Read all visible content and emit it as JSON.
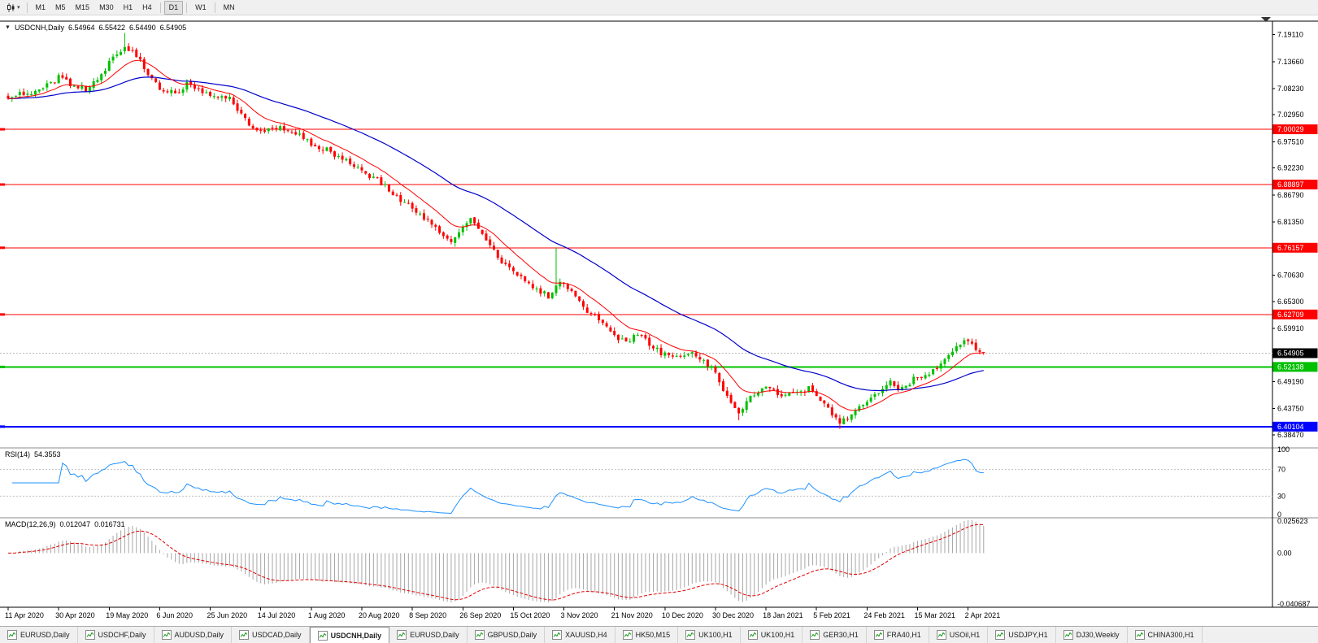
{
  "toolbar": {
    "chart_type_button": {
      "icon": "candlestick-chart-icon",
      "caret": "▾"
    },
    "timeframes": [
      {
        "label": "M1",
        "active": false
      },
      {
        "label": "M5",
        "active": false
      },
      {
        "label": "M15",
        "active": false
      },
      {
        "label": "M30",
        "active": false
      },
      {
        "label": "H1",
        "active": false
      },
      {
        "label": "H4",
        "active": false
      },
      {
        "label": "D1",
        "active": true
      },
      {
        "label": "W1",
        "active": false
      },
      {
        "label": "MN",
        "active": false
      }
    ]
  },
  "chart": {
    "window_icon": "▼",
    "symbol_title": "USDCNH,Daily",
    "ohlc": {
      "open": "6.54964",
      "high": "6.55422",
      "low": "6.54490",
      "close": "6.54905"
    }
  },
  "indicators": {
    "rsi": {
      "name": "RSI(14)",
      "value": "54.3553",
      "axis_labels": [
        "100",
        "70",
        "30",
        "0"
      ],
      "levels": [
        70,
        30
      ],
      "line_color": "#1E90FF"
    },
    "macd": {
      "name": "MACD(12,26,9)",
      "values": [
        "0.012047",
        "0.016731"
      ],
      "axis_labels": [
        "0.025623",
        "0.00",
        "-0.040687"
      ],
      "histogram_color": "#a6a6a6",
      "signal_color": "#e00000"
    }
  },
  "price_axis": {
    "labels": [
      "7.19110",
      "7.13660",
      "7.08230",
      "7.02950",
      "6.97510",
      "6.92230",
      "6.86790",
      "6.81350",
      "6.70630",
      "6.65300",
      "6.59910",
      "6.49190",
      "6.43750",
      "6.38470"
    ],
    "current_price": {
      "value": "6.54905",
      "bg": "#000000",
      "fg": "#ffffff"
    }
  },
  "hlines": [
    {
      "price": 7.00029,
      "label": "7.00029",
      "color": "#ff0000",
      "width": 1
    },
    {
      "price": 6.88897,
      "label": "6.88897",
      "color": "#ff0000",
      "width": 1
    },
    {
      "price": 6.76157,
      "label": "6.76157",
      "color": "#ff0000",
      "width": 1
    },
    {
      "price": 6.62709,
      "label": "6.62709",
      "color": "#ff0000",
      "width": 1
    },
    {
      "price": 6.52138,
      "label": "6.52138",
      "color": "#00c000",
      "width": 2
    },
    {
      "price": 6.40104,
      "label": "6.40104",
      "color": "#0000ff",
      "width": 2
    }
  ],
  "time_axis": {
    "labels": [
      "11 Apr 2020",
      "30 Apr 2020",
      "19 May 2020",
      "6 Jun 2020",
      "25 Jun 2020",
      "14 Jul 2020",
      "1 Aug 2020",
      "20 Aug 2020",
      "8 Sep 2020",
      "26 Sep 2020",
      "15 Oct 2020",
      "3 Nov 2020",
      "21 Nov 2020",
      "10 Dec 2020",
      "30 Dec 2020",
      "18 Jan 2021",
      "5 Feb 2021",
      "24 Feb 2021",
      "15 Mar 2021",
      "2 Apr 2021"
    ]
  },
  "tabs": [
    {
      "label": "EURUSD,Daily",
      "active": false
    },
    {
      "label": "USDCHF,Daily",
      "active": false
    },
    {
      "label": "AUDUSD,Daily",
      "active": false
    },
    {
      "label": "USDCAD,Daily",
      "active": false
    },
    {
      "label": "USDCNH,Daily",
      "active": true
    },
    {
      "label": "EURUSD,Daily",
      "active": false
    },
    {
      "label": "GBPUSD,Daily",
      "active": false
    },
    {
      "label": "XAUUSD,H4",
      "active": false
    },
    {
      "label": "HK50,M15",
      "active": false
    },
    {
      "label": "UK100,H1",
      "active": false
    },
    {
      "label": "UK100,H1",
      "active": false
    },
    {
      "label": "GER30,H1",
      "active": false
    },
    {
      "label": "FRA40,H1",
      "active": false
    },
    {
      "label": "USOil,H1",
      "active": false
    },
    {
      "label": "USDJPY,H1",
      "active": false
    },
    {
      "label": "DJ30,Weekly",
      "active": false
    },
    {
      "label": "CHINA300,H1",
      "active": false
    }
  ],
  "chart_data": {
    "type": "candlestick",
    "symbol": "USDCNH",
    "timeframe": "Daily",
    "bars": 252,
    "y_axis": {
      "min": 6.368,
      "max": 7.215
    },
    "date_label_bar_step": 13,
    "price_path_anchors": [
      [
        0,
        7.065
      ],
      [
        6,
        7.075
      ],
      [
        10,
        7.09
      ],
      [
        13,
        7.105
      ],
      [
        16,
        7.09
      ],
      [
        20,
        7.08
      ],
      [
        23,
        7.1
      ],
      [
        26,
        7.135
      ],
      [
        30,
        7.168
      ],
      [
        33,
        7.15
      ],
      [
        36,
        7.11
      ],
      [
        39,
        7.085
      ],
      [
        43,
        7.072
      ],
      [
        46,
        7.09
      ],
      [
        52,
        7.072
      ],
      [
        57,
        7.06
      ],
      [
        60,
        7.028
      ],
      [
        63,
        7.005
      ],
      [
        67,
        6.997
      ],
      [
        71,
        7.003
      ],
      [
        75,
        6.988
      ],
      [
        78,
        6.972
      ],
      [
        82,
        6.958
      ],
      [
        86,
        6.94
      ],
      [
        91,
        6.915
      ],
      [
        95,
        6.898
      ],
      [
        98,
        6.878
      ],
      [
        101,
        6.858
      ],
      [
        104,
        6.84
      ],
      [
        108,
        6.818
      ],
      [
        111,
        6.79
      ],
      [
        114,
        6.772
      ],
      [
        117,
        6.805
      ],
      [
        119,
        6.825
      ],
      [
        122,
        6.788
      ],
      [
        125,
        6.752
      ],
      [
        128,
        6.728
      ],
      [
        130,
        6.712
      ],
      [
        133,
        6.698
      ],
      [
        136,
        6.678
      ],
      [
        139,
        6.664
      ],
      [
        142,
        6.692
      ],
      [
        144,
        6.682
      ],
      [
        147,
        6.652
      ],
      [
        150,
        6.628
      ],
      [
        153,
        6.612
      ],
      [
        156,
        6.582
      ],
      [
        159,
        6.57
      ],
      [
        162,
        6.585
      ],
      [
        165,
        6.568
      ],
      [
        169,
        6.545
      ],
      [
        172,
        6.538
      ],
      [
        175,
        6.552
      ],
      [
        178,
        6.542
      ],
      [
        181,
        6.52
      ],
      [
        183,
        6.49
      ],
      [
        186,
        6.452
      ],
      [
        188,
        6.432
      ],
      [
        191,
        6.462
      ],
      [
        194,
        6.478
      ],
      [
        197,
        6.472
      ],
      [
        200,
        6.462
      ],
      [
        203,
        6.468
      ],
      [
        206,
        6.478
      ],
      [
        208,
        6.458
      ],
      [
        211,
        6.436
      ],
      [
        214,
        6.408
      ],
      [
        217,
        6.424
      ],
      [
        219,
        6.44
      ],
      [
        221,
        6.455
      ],
      [
        224,
        6.473
      ],
      [
        227,
        6.49
      ],
      [
        230,
        6.477
      ],
      [
        233,
        6.498
      ],
      [
        236,
        6.505
      ],
      [
        239,
        6.52
      ],
      [
        242,
        6.542
      ],
      [
        244,
        6.562
      ],
      [
        247,
        6.576
      ],
      [
        249,
        6.558
      ],
      [
        251,
        6.549
      ]
    ],
    "wick_spikes": {
      "30": 0.026,
      "141": 0.072
    },
    "low_spikes": {
      "188": 0.008,
      "214": 0.006
    },
    "up_color": "#00c000",
    "down_color": "#ff0000",
    "ma_fast": {
      "period": 12,
      "color": "#ff0000"
    },
    "ma_slow": {
      "period": 45,
      "color": "#0000cc"
    },
    "rsi_period": 14,
    "macd_settings": {
      "fast": 12,
      "slow": 26,
      "signal": 9
    },
    "macd_axis": {
      "min": -0.0412,
      "max": 0.0262
    },
    "current_price": 6.54905
  }
}
